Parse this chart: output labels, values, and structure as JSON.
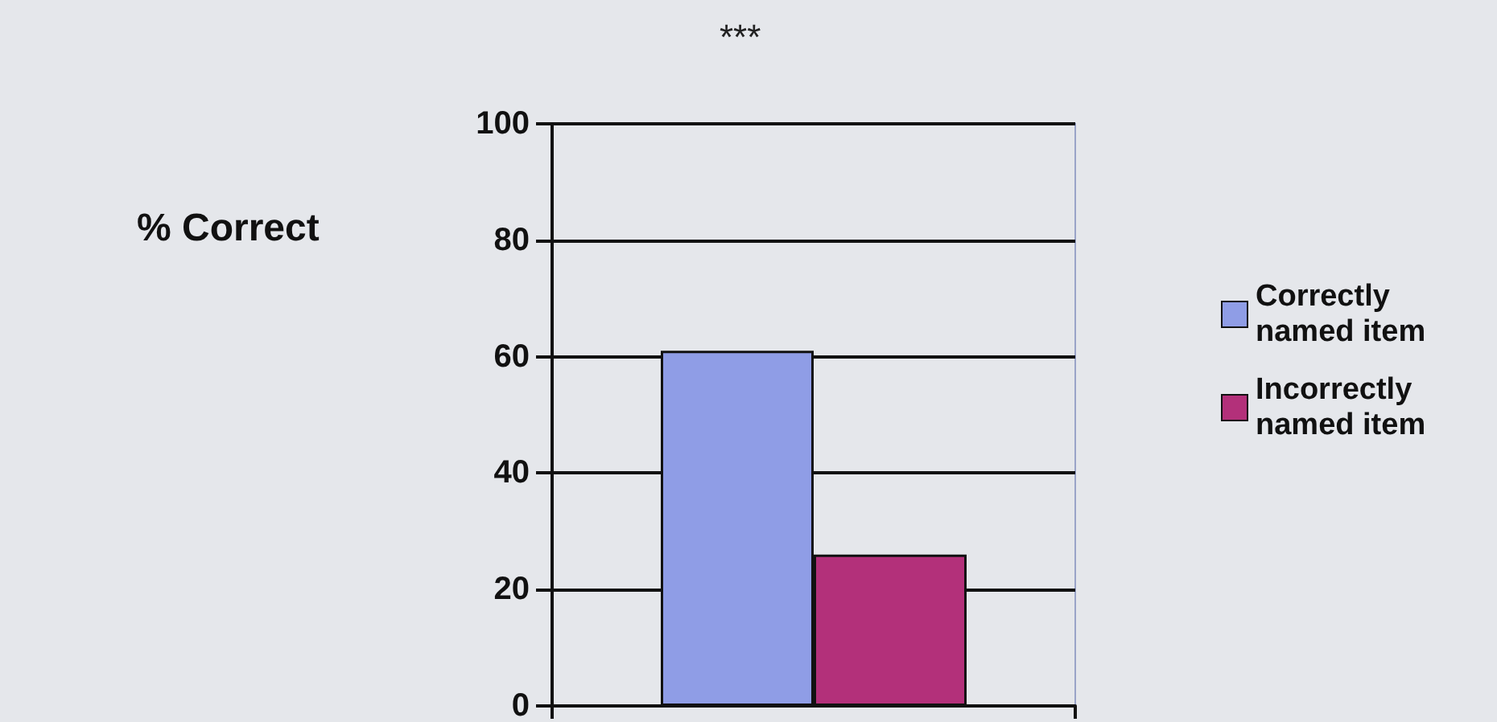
{
  "chart_data": {
    "type": "bar",
    "ylabel": "% Correct",
    "annotations": [
      "***"
    ],
    "categories": [
      null
    ],
    "series": [
      {
        "name": "Correctly named item",
        "color": "#8f9de6",
        "values": [
          61
        ]
      },
      {
        "name": "Incorrectly named item",
        "color": "#b3307a",
        "values": [
          26
        ]
      }
    ],
    "ylim": [
      0,
      100
    ],
    "yticks": [
      0,
      20,
      40,
      60,
      80,
      100
    ],
    "grid": "y",
    "legend": "right"
  }
}
